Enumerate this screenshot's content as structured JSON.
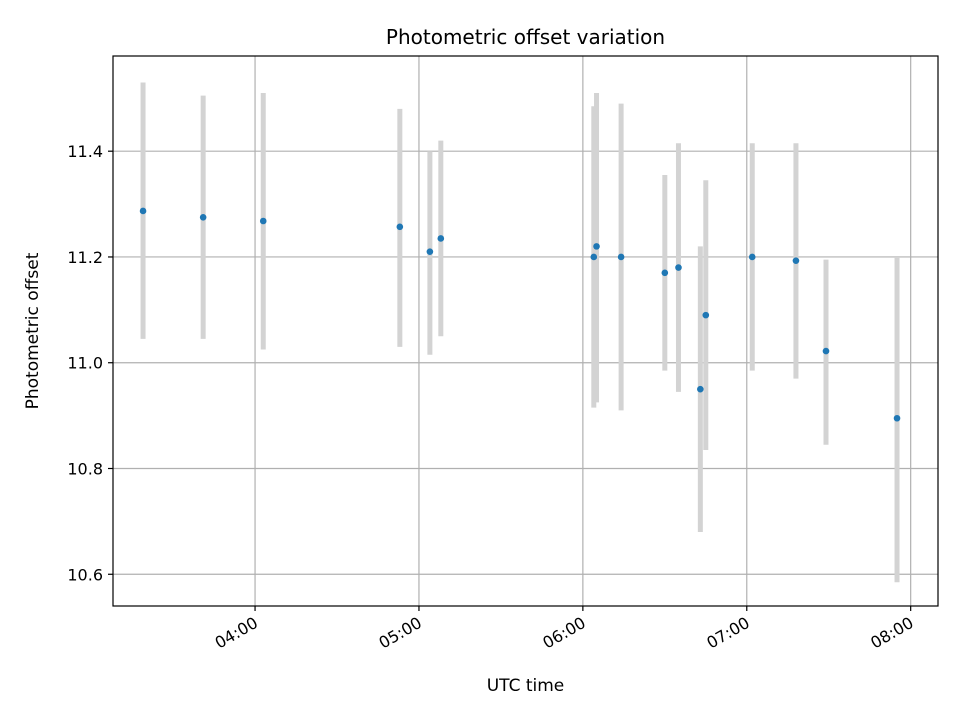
{
  "chart_data": {
    "type": "scatter",
    "title": "Photometric offset variation",
    "xlabel": "UTC time",
    "ylabel": "Photometric offset",
    "x_tick_labels": [
      "04:00",
      "05:00",
      "06:00",
      "07:00",
      "08:00"
    ],
    "x_ticks": [
      "04:00",
      "05:00",
      "06:00",
      "07:00",
      "08:00"
    ],
    "xlim": [
      "03:08",
      "08:10"
    ],
    "ylim": [
      10.54,
      11.58
    ],
    "y_ticks": [
      10.6,
      10.8,
      11.0,
      11.2,
      11.4
    ],
    "y_tick_labels": [
      "10.6",
      "10.8",
      "11.0",
      "11.2",
      "11.4"
    ],
    "grid": true,
    "legend": "none",
    "point_color": "#1f77b4",
    "errorbar_color": "#d3d3d3",
    "points": [
      {
        "x": "03:19",
        "y": 11.287,
        "ylow": 11.045,
        "yhigh": 11.53
      },
      {
        "x": "03:41",
        "y": 11.275,
        "ylow": 11.045,
        "yhigh": 11.505
      },
      {
        "x": "04:03",
        "y": 11.268,
        "ylow": 11.025,
        "yhigh": 11.51
      },
      {
        "x": "04:53",
        "y": 11.257,
        "ylow": 11.03,
        "yhigh": 11.48
      },
      {
        "x": "05:04",
        "y": 11.21,
        "ylow": 11.015,
        "yhigh": 11.4
      },
      {
        "x": "05:08",
        "y": 11.235,
        "ylow": 11.05,
        "yhigh": 11.42
      },
      {
        "x": "06:04",
        "y": 11.2,
        "ylow": 10.915,
        "yhigh": 11.485
      },
      {
        "x": "06:05",
        "y": 11.22,
        "ylow": 10.925,
        "yhigh": 11.51
      },
      {
        "x": "06:14",
        "y": 11.2,
        "ylow": 10.91,
        "yhigh": 11.49
      },
      {
        "x": "06:30",
        "y": 11.17,
        "ylow": 10.985,
        "yhigh": 11.355
      },
      {
        "x": "06:35",
        "y": 11.18,
        "ylow": 10.945,
        "yhigh": 11.415
      },
      {
        "x": "06:43",
        "y": 10.95,
        "ylow": 10.68,
        "yhigh": 11.22
      },
      {
        "x": "06:45",
        "y": 11.09,
        "ylow": 10.835,
        "yhigh": 11.345
      },
      {
        "x": "07:02",
        "y": 11.2,
        "ylow": 10.985,
        "yhigh": 11.415
      },
      {
        "x": "07:18",
        "y": 11.193,
        "ylow": 10.97,
        "yhigh": 11.415
      },
      {
        "x": "07:29",
        "y": 11.022,
        "ylow": 10.845,
        "yhigh": 11.195
      },
      {
        "x": "07:55",
        "y": 10.895,
        "ylow": 10.585,
        "yhigh": 11.2
      }
    ]
  }
}
